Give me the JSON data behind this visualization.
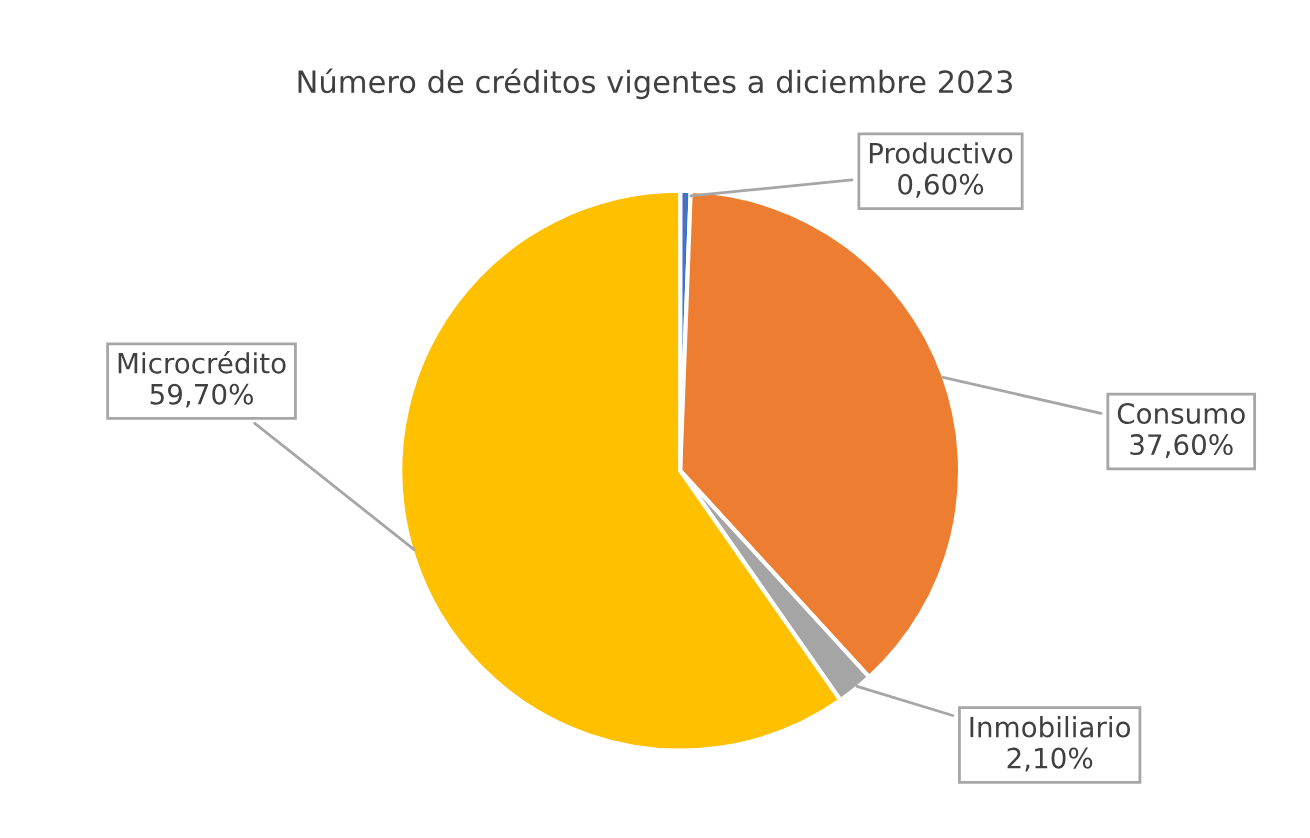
{
  "chart_data": {
    "type": "pie",
    "title": "Número de créditos vigentes a diciembre 2023",
    "categories": [
      "Productivo",
      "Consumo",
      "Inmobiliario",
      "Microcrédito"
    ],
    "values": [
      0.6,
      37.6,
      2.1,
      59.7
    ],
    "value_labels": [
      "0,60%",
      "37,60%",
      "2,10%",
      "59,70%"
    ],
    "colors": [
      "#4472c4",
      "#ed7d31",
      "#a5a5a5",
      "#ffc000"
    ]
  }
}
